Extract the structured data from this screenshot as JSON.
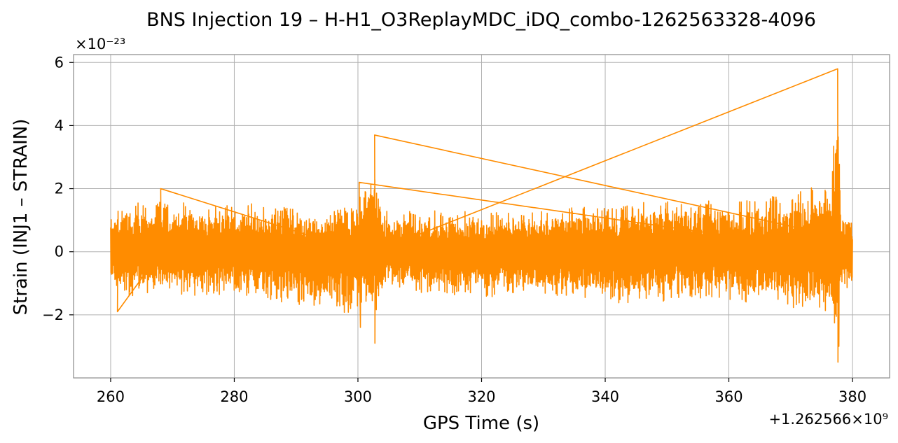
{
  "chart_data": {
    "type": "line",
    "title": "BNS Injection 19 – H-H1_O3ReplayMDC_iDQ_combo-1262563328-4096",
    "xlabel": "GPS Time (s)",
    "ylabel": "Strain (INJ1 – STRAIN)",
    "x_offset_label": "+1.262566×10⁹",
    "y_scale_label": "×10⁻²³",
    "xlim": [
      254,
      386
    ],
    "ylim": [
      -4.0,
      6.25
    ],
    "x_ticks": [
      260,
      280,
      300,
      320,
      340,
      360,
      380
    ],
    "y_ticks": [
      -2,
      0,
      2,
      4,
      6
    ],
    "x_tick_labels": [
      "260",
      "280",
      "300",
      "320",
      "340",
      "360",
      "380"
    ],
    "y_tick_labels": [
      "−2",
      "0",
      "2",
      "4",
      "6"
    ],
    "grid": true,
    "series": [
      {
        "color": "#ff8c00",
        "x_range": [
          260,
          380
        ],
        "values_description": "dense noise strain",
        "envelope": [
          {
            "x": 260,
            "upper": 1.3,
            "lower": -1.2
          },
          {
            "x": 261,
            "upper": 1.8,
            "lower": -1.9
          },
          {
            "x": 268,
            "upper": 2.0,
            "lower": -1.7
          },
          {
            "x": 275,
            "upper": 1.9,
            "lower": -1.8
          },
          {
            "x": 285,
            "upper": 1.9,
            "lower": -1.9
          },
          {
            "x": 295,
            "upper": 1.7,
            "lower": -2.3
          },
          {
            "x": 300,
            "upper": 2.2,
            "lower": -2.4
          },
          {
            "x": 301.5,
            "upper": 2.5,
            "lower": -2.2
          },
          {
            "x": 302.7,
            "upper": 3.7,
            "lower": -2.9
          },
          {
            "x": 304,
            "upper": 1.6,
            "lower": -1.5
          },
          {
            "x": 315,
            "upper": 1.6,
            "lower": -1.8
          },
          {
            "x": 330,
            "upper": 1.7,
            "lower": -1.8
          },
          {
            "x": 339,
            "upper": 1.9,
            "lower": -2.0
          },
          {
            "x": 350,
            "upper": 2.0,
            "lower": -2.0
          },
          {
            "x": 360,
            "upper": 2.1,
            "lower": -1.9
          },
          {
            "x": 370,
            "upper": 2.2,
            "lower": -2.2
          },
          {
            "x": 376,
            "upper": 2.8,
            "lower": -2.6
          },
          {
            "x": 377.6,
            "upper": 5.8,
            "lower": -3.5
          },
          {
            "x": 378.2,
            "upper": 1.6,
            "lower": -1.4
          },
          {
            "x": 380,
            "upper": 1.6,
            "lower": -1.7
          }
        ]
      }
    ]
  }
}
